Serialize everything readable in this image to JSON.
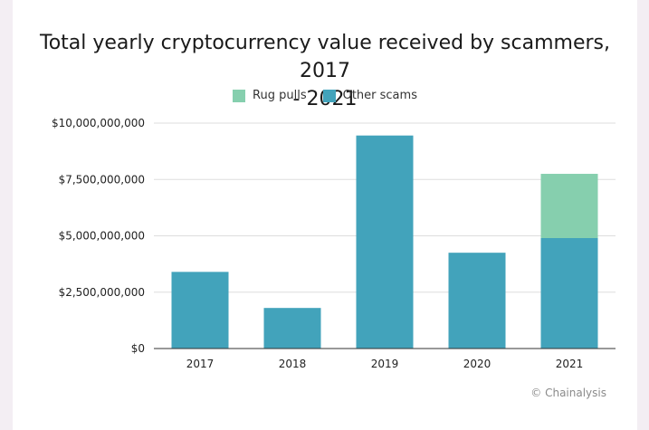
{
  "chart_data": {
    "type": "bar",
    "stacked": true,
    "title_lines": [
      "Total yearly cryptocurrency value received by scammers, 2017",
      "- 2021"
    ],
    "categories": [
      "2017",
      "2018",
      "2019",
      "2020",
      "2021"
    ],
    "series": [
      {
        "name": "Other scams",
        "color": "#42a3bb",
        "values": [
          3400000000,
          1800000000,
          9450000000,
          4250000000,
          4900000000
        ]
      },
      {
        "name": "Rug pulls",
        "color": "#86cfae",
        "values": [
          0,
          0,
          0,
          0,
          2850000000
        ]
      }
    ],
    "legend_order": [
      "Rug pulls",
      "Other scams"
    ],
    "legend_position": "top",
    "ylim": [
      0,
      10000000000
    ],
    "yticks": [
      0,
      2500000000,
      5000000000,
      7500000000,
      10000000000
    ],
    "ytick_labels": [
      "$0",
      "$2,500,000,000",
      "$5,000,000,000",
      "$7,500,000,000",
      "$10,000,000,000"
    ],
    "grid": true,
    "xlabel": "",
    "ylabel": ""
  },
  "credit": "© Chainalysis",
  "colors": {
    "grid": "#dddddd",
    "axis": "#333333",
    "text": "#222222"
  }
}
